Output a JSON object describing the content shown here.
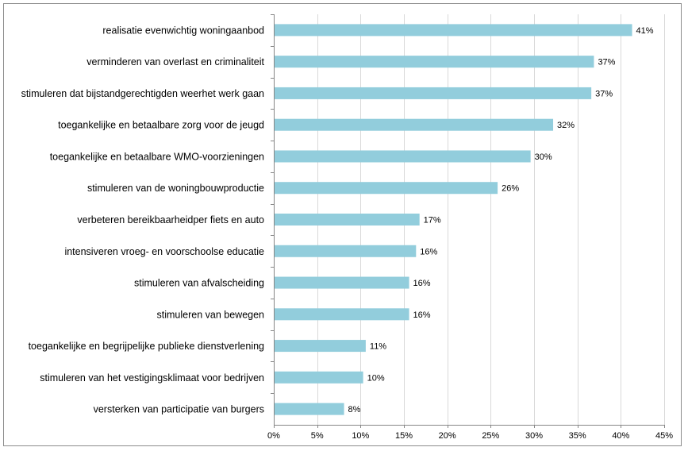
{
  "chart_data": {
    "type": "bar",
    "orientation": "horizontal",
    "title": "",
    "xlabel": "",
    "ylabel": "",
    "xlim": [
      0,
      45
    ],
    "grid": true,
    "bar_color": "#92cddc",
    "categories": [
      "realisatie evenwichtig woningaanbod",
      "verminderen van overlast en criminaliteit",
      "stimuleren dat bijstandgerechtigden weerhet werk gaan",
      "toegankelijke en betaalbare zorg voor de jeugd",
      "toegankelijke en betaalbare WMO-voorzieningen",
      "stimuleren van de woningbouwproductie",
      "verbeteren bereikbaarheidper fiets en auto",
      "intensiveren vroeg- en voorschoolse educatie",
      "stimuleren van afvalscheiding",
      "stimuleren van bewegen",
      "toegankelijke en begrijpelijke publieke dienstverlening",
      "stimuleren van het vestigingsklimaat voor bedrijven",
      "versterken van participatie van burgers"
    ],
    "values": [
      41.3,
      36.9,
      36.6,
      32.2,
      29.6,
      25.8,
      16.8,
      16.4,
      15.6,
      15.6,
      10.6,
      10.3,
      8.1
    ],
    "value_labels": [
      "41%",
      "37%",
      "37%",
      "32%",
      "30%",
      "26%",
      "17%",
      "16%",
      "16%",
      "16%",
      "11%",
      "10%",
      "8%"
    ],
    "x_ticks": [
      0,
      5,
      10,
      15,
      20,
      25,
      30,
      35,
      40,
      45
    ],
    "x_tick_labels": [
      "0%",
      "5%",
      "10%",
      "15%",
      "20%",
      "25%",
      "30%",
      "35%",
      "40%",
      "45%"
    ]
  }
}
